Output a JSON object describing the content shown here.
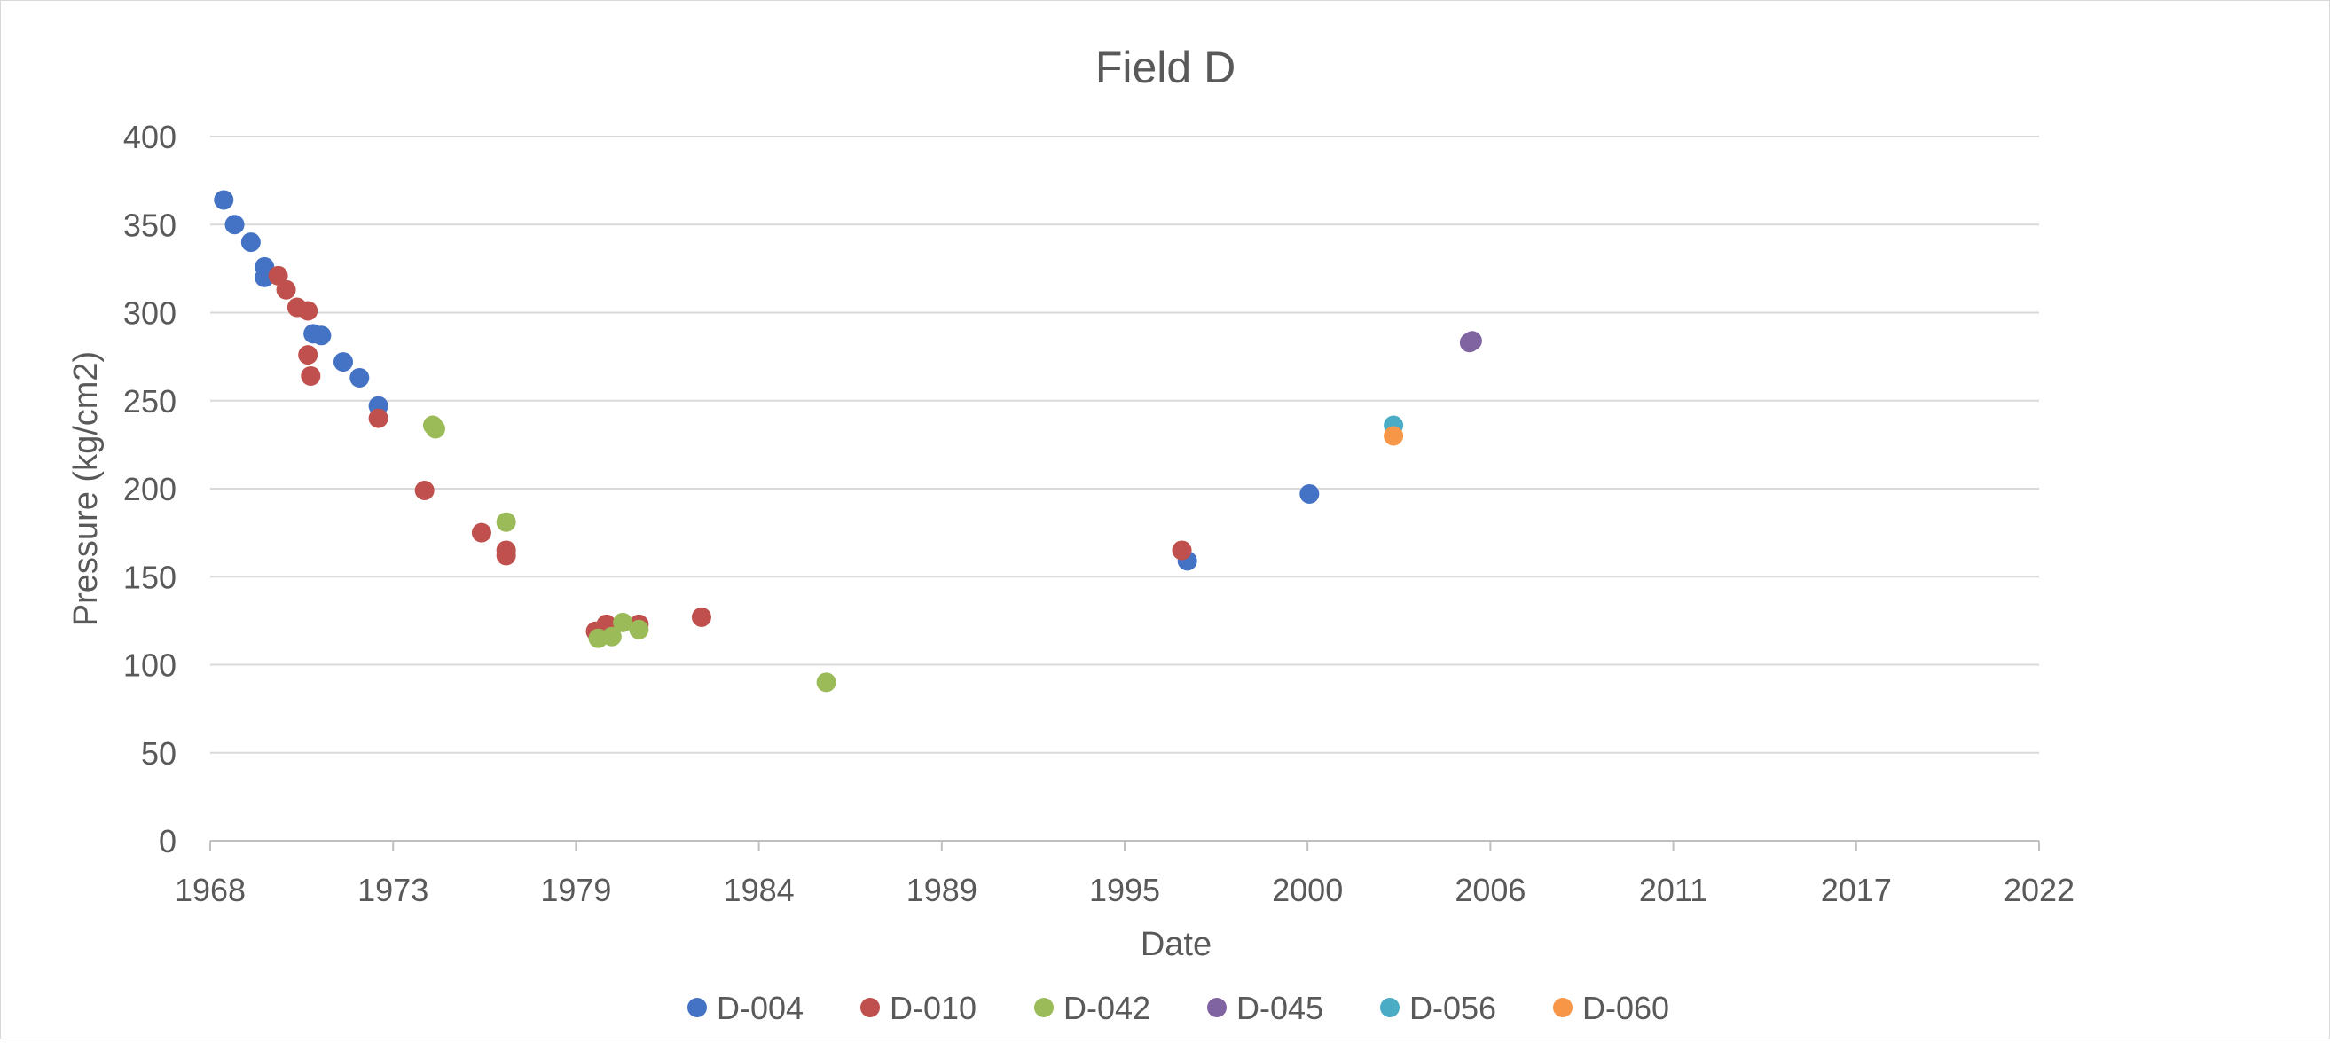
{
  "chart_data": {
    "type": "scatter",
    "title": "Field D",
    "xlabel": "Date",
    "ylabel": "Pressure (kg/cm2)",
    "x_axis_type": "date",
    "xlim": [
      "1968-01-01",
      "2024-02-26"
    ],
    "ylim": [
      0,
      400
    ],
    "x_tick_labels": [
      "1968",
      "1973",
      "1979",
      "1984",
      "1989",
      "1995",
      "2000",
      "2006",
      "2011",
      "2017",
      "2022"
    ],
    "y_ticks": [
      0,
      50,
      100,
      150,
      200,
      250,
      300,
      350,
      400
    ],
    "grid": "horizontal",
    "legend_position": "bottom",
    "series": [
      {
        "name": "D-004",
        "color": "#4472c4",
        "points": [
          {
            "x": "1968-06-01",
            "y": 364
          },
          {
            "x": "1968-10-01",
            "y": 350
          },
          {
            "x": "1969-04-01",
            "y": 340
          },
          {
            "x": "1969-09-01",
            "y": 326
          },
          {
            "x": "1969-09-01",
            "y": 320
          },
          {
            "x": "1971-03-01",
            "y": 288
          },
          {
            "x": "1971-06-01",
            "y": 287
          },
          {
            "x": "1972-02-01",
            "y": 272
          },
          {
            "x": "1972-08-01",
            "y": 263
          },
          {
            "x": "1973-03-01",
            "y": 247
          },
          {
            "x": "1998-01-01",
            "y": 159
          },
          {
            "x": "2001-10-01",
            "y": 197
          }
        ]
      },
      {
        "name": "D-010",
        "color": "#c0504d",
        "points": [
          {
            "x": "1970-02-01",
            "y": 321
          },
          {
            "x": "1970-05-01",
            "y": 313
          },
          {
            "x": "1970-09-01",
            "y": 303
          },
          {
            "x": "1971-01-01",
            "y": 301
          },
          {
            "x": "1971-01-01",
            "y": 276
          },
          {
            "x": "1971-02-01",
            "y": 264
          },
          {
            "x": "1973-03-01",
            "y": 240
          },
          {
            "x": "1974-08-01",
            "y": 199
          },
          {
            "x": "1976-05-01",
            "y": 175
          },
          {
            "x": "1977-02-01",
            "y": 165
          },
          {
            "x": "1977-02-01",
            "y": 162
          },
          {
            "x": "1979-11-01",
            "y": 119
          },
          {
            "x": "1980-03-01",
            "y": 123
          },
          {
            "x": "1981-03-01",
            "y": 123
          },
          {
            "x": "1983-02-01",
            "y": 127
          },
          {
            "x": "1997-11-01",
            "y": 165
          }
        ]
      },
      {
        "name": "D-042",
        "color": "#9bbb59",
        "points": [
          {
            "x": "1974-11-01",
            "y": 236
          },
          {
            "x": "1974-12-01",
            "y": 234
          },
          {
            "x": "1977-02-01",
            "y": 181
          },
          {
            "x": "1979-12-01",
            "y": 115
          },
          {
            "x": "1980-05-01",
            "y": 116
          },
          {
            "x": "1980-09-01",
            "y": 124
          },
          {
            "x": "1981-03-01",
            "y": 120
          },
          {
            "x": "1986-12-01",
            "y": 90
          }
        ]
      },
      {
        "name": "D-045",
        "color": "#8064a2",
        "points": [
          {
            "x": "2006-09-01",
            "y": 283
          },
          {
            "x": "2006-10-01",
            "y": 284
          }
        ]
      },
      {
        "name": "D-056",
        "color": "#4bacc6",
        "points": [
          {
            "x": "2004-05-01",
            "y": 236
          }
        ]
      },
      {
        "name": "D-060",
        "color": "#f79646",
        "points": [
          {
            "x": "2004-05-01",
            "y": 230
          }
        ]
      }
    ]
  }
}
